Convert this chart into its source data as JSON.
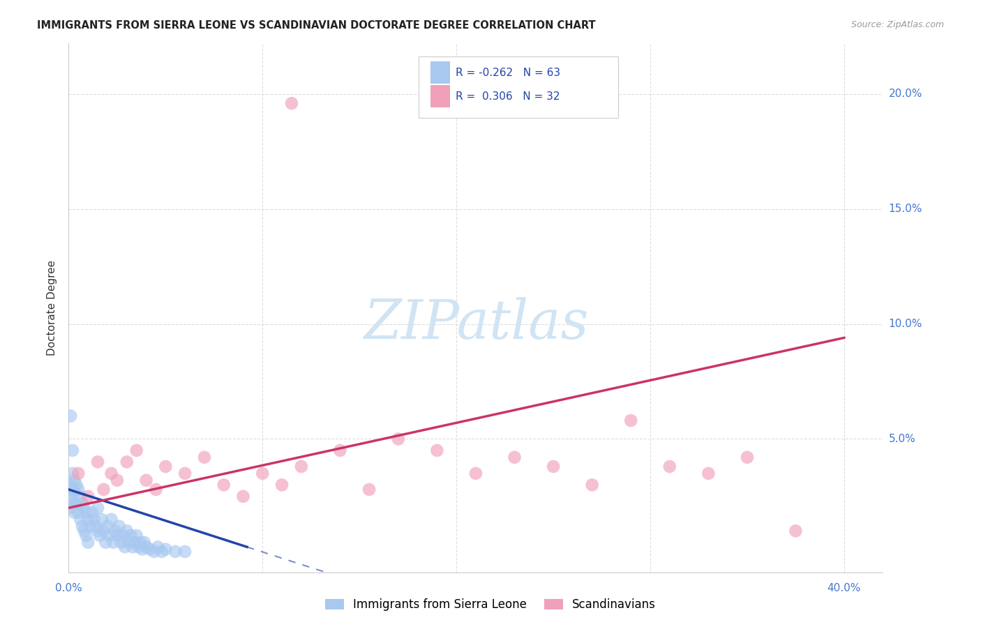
{
  "title": "IMMIGRANTS FROM SIERRA LEONE VS SCANDINAVIAN DOCTORATE DEGREE CORRELATION CHART",
  "source": "Source: ZipAtlas.com",
  "ylabel": "Doctorate Degree",
  "xlim": [
    0.0,
    0.42
  ],
  "ylim": [
    -0.008,
    0.222
  ],
  "blue_color": "#A8C8F0",
  "pink_color": "#F0A0B8",
  "blue_line_color": "#2244AA",
  "pink_line_color": "#CC3366",
  "watermark_color": "#D0E4F4",
  "blue_r": -0.262,
  "blue_n": 63,
  "pink_r": 0.306,
  "pink_n": 32,
  "blue_x": [
    0.001,
    0.001,
    0.001,
    0.002,
    0.002,
    0.002,
    0.003,
    0.003,
    0.003,
    0.004,
    0.004,
    0.005,
    0.005,
    0.006,
    0.006,
    0.007,
    0.007,
    0.008,
    0.008,
    0.009,
    0.009,
    0.01,
    0.01,
    0.011,
    0.012,
    0.013,
    0.014,
    0.015,
    0.015,
    0.016,
    0.017,
    0.018,
    0.019,
    0.02,
    0.021,
    0.022,
    0.023,
    0.024,
    0.025,
    0.026,
    0.027,
    0.028,
    0.029,
    0.03,
    0.031,
    0.032,
    0.033,
    0.034,
    0.035,
    0.036,
    0.037,
    0.038,
    0.039,
    0.04,
    0.042,
    0.044,
    0.046,
    0.048,
    0.05,
    0.055,
    0.06,
    0.001,
    0.002
  ],
  "blue_y": [
    0.03,
    0.025,
    0.02,
    0.035,
    0.028,
    0.022,
    0.032,
    0.027,
    0.018,
    0.03,
    0.022,
    0.028,
    0.018,
    0.025,
    0.015,
    0.022,
    0.012,
    0.02,
    0.01,
    0.018,
    0.008,
    0.015,
    0.005,
    0.012,
    0.018,
    0.015,
    0.012,
    0.01,
    0.02,
    0.008,
    0.015,
    0.01,
    0.005,
    0.012,
    0.008,
    0.015,
    0.005,
    0.01,
    0.008,
    0.012,
    0.005,
    0.008,
    0.003,
    0.01,
    0.005,
    0.008,
    0.003,
    0.005,
    0.008,
    0.003,
    0.005,
    0.002,
    0.005,
    0.003,
    0.002,
    0.001,
    0.003,
    0.001,
    0.002,
    0.001,
    0.001,
    0.06,
    0.045
  ],
  "pink_x": [
    0.005,
    0.01,
    0.015,
    0.018,
    0.022,
    0.025,
    0.03,
    0.035,
    0.04,
    0.045,
    0.05,
    0.06,
    0.07,
    0.08,
    0.09,
    0.1,
    0.11,
    0.12,
    0.14,
    0.155,
    0.17,
    0.19,
    0.21,
    0.23,
    0.25,
    0.27,
    0.29,
    0.31,
    0.33,
    0.35,
    0.375,
    0.115
  ],
  "pink_y": [
    0.035,
    0.025,
    0.04,
    0.028,
    0.035,
    0.032,
    0.04,
    0.045,
    0.032,
    0.028,
    0.038,
    0.035,
    0.042,
    0.03,
    0.025,
    0.035,
    0.03,
    0.038,
    0.045,
    0.028,
    0.05,
    0.045,
    0.035,
    0.042,
    0.038,
    0.03,
    0.058,
    0.038,
    0.035,
    0.042,
    0.01,
    0.196
  ],
  "blue_line_x0": 0.0,
  "blue_line_x1": 0.092,
  "blue_line_x_dash_end": 0.2,
  "pink_line_x0": 0.0,
  "pink_line_x1": 0.4,
  "pink_line_y0": 0.02,
  "pink_line_y1": 0.094,
  "blue_line_y0": 0.028,
  "blue_line_y1": 0.003
}
